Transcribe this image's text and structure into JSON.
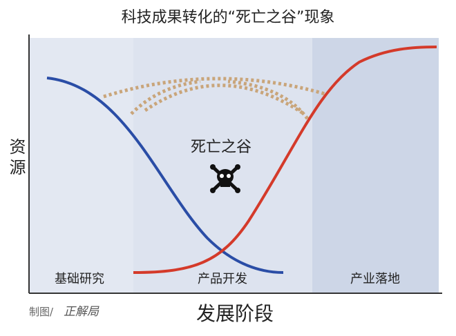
{
  "title": "科技成果转化的“死亡之谷”现象",
  "y_axis_label": "资源",
  "x_axis_label": "发展阶段",
  "stages": [
    "基础研究",
    "产品开发",
    "产业落地"
  ],
  "valley_label": "死亡之谷",
  "credit": {
    "prefix": "制图/",
    "brand": "正解局"
  }
}
